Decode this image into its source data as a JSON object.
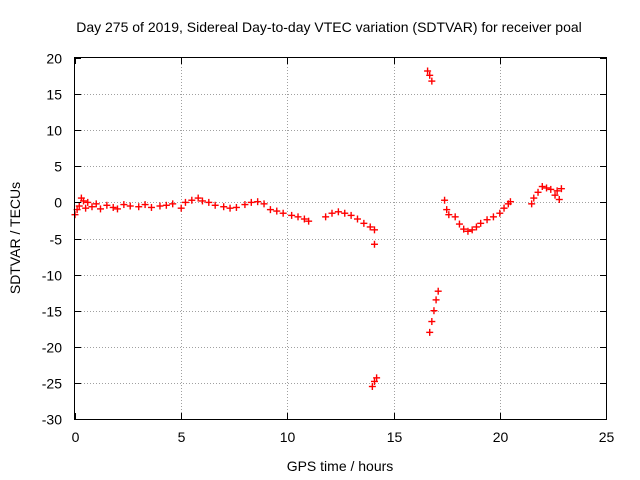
{
  "chart_data": {
    "type": "scatter",
    "title": "Day 275 of 2019, Sidereal Day-to-day VTEC variation (SDTVAR) for receiver poal",
    "xlabel": "GPS time / hours",
    "ylabel": "SDTVAR / TECUs",
    "xlim": [
      0,
      25
    ],
    "ylim": [
      -30,
      20
    ],
    "xticks": [
      0,
      5,
      10,
      15,
      20,
      25
    ],
    "yticks": [
      -30,
      -25,
      -20,
      -15,
      -10,
      -5,
      0,
      5,
      10,
      15,
      20
    ],
    "grid": true,
    "marker": "+",
    "color": "#ff0000",
    "series": [
      {
        "name": "SDTVAR",
        "points": [
          [
            0.0,
            -1.7
          ],
          [
            0.1,
            -1.0
          ],
          [
            0.2,
            -0.5
          ],
          [
            0.3,
            0.6
          ],
          [
            0.4,
            0.2
          ],
          [
            0.5,
            -0.8
          ],
          [
            0.6,
            0.0
          ],
          [
            0.8,
            -0.6
          ],
          [
            1.0,
            -0.2
          ],
          [
            1.2,
            -0.9
          ],
          [
            1.5,
            -0.4
          ],
          [
            1.8,
            -0.7
          ],
          [
            2.0,
            -0.9
          ],
          [
            2.3,
            -0.3
          ],
          [
            2.6,
            -0.5
          ],
          [
            3.0,
            -0.6
          ],
          [
            3.3,
            -0.3
          ],
          [
            3.6,
            -0.7
          ],
          [
            4.0,
            -0.5
          ],
          [
            4.3,
            -0.4
          ],
          [
            4.6,
            -0.2
          ],
          [
            5.0,
            -0.8
          ],
          [
            5.2,
            0.0
          ],
          [
            5.5,
            0.3
          ],
          [
            5.8,
            0.6
          ],
          [
            6.0,
            0.2
          ],
          [
            6.3,
            0.0
          ],
          [
            6.6,
            -0.4
          ],
          [
            7.0,
            -0.6
          ],
          [
            7.3,
            -0.8
          ],
          [
            7.6,
            -0.7
          ],
          [
            8.0,
            -0.3
          ],
          [
            8.3,
            0.0
          ],
          [
            8.6,
            0.1
          ],
          [
            8.9,
            -0.2
          ],
          [
            9.2,
            -1.0
          ],
          [
            9.5,
            -1.2
          ],
          [
            9.8,
            -1.5
          ],
          [
            10.2,
            -1.8
          ],
          [
            10.5,
            -2.0
          ],
          [
            10.8,
            -2.3
          ],
          [
            11.0,
            -2.6
          ],
          [
            11.8,
            -2.0
          ],
          [
            12.1,
            -1.5
          ],
          [
            12.4,
            -1.3
          ],
          [
            12.7,
            -1.5
          ],
          [
            13.0,
            -1.8
          ],
          [
            13.3,
            -2.3
          ],
          [
            13.6,
            -2.9
          ],
          [
            13.9,
            -3.4
          ],
          [
            14.1,
            -3.8
          ],
          [
            14.1,
            -5.8
          ],
          [
            14.0,
            -25.5
          ],
          [
            14.1,
            -24.8
          ],
          [
            14.2,
            -24.3
          ],
          [
            16.6,
            18.2
          ],
          [
            16.7,
            17.6
          ],
          [
            16.8,
            16.8
          ],
          [
            16.7,
            -18.0
          ],
          [
            16.8,
            -16.5
          ],
          [
            16.9,
            -15.0
          ],
          [
            17.0,
            -13.5
          ],
          [
            17.1,
            -12.3
          ],
          [
            17.4,
            0.3
          ],
          [
            17.5,
            -1.0
          ],
          [
            17.6,
            -1.7
          ],
          [
            17.9,
            -2.0
          ],
          [
            18.1,
            -3.0
          ],
          [
            18.3,
            -3.7
          ],
          [
            18.5,
            -4.0
          ],
          [
            18.7,
            -3.8
          ],
          [
            18.9,
            -3.4
          ],
          [
            19.1,
            -2.9
          ],
          [
            19.4,
            -2.4
          ],
          [
            19.7,
            -2.0
          ],
          [
            20.0,
            -1.5
          ],
          [
            20.2,
            -0.8
          ],
          [
            20.4,
            -0.2
          ],
          [
            20.5,
            0.1
          ],
          [
            21.5,
            -0.2
          ],
          [
            21.6,
            0.6
          ],
          [
            21.8,
            1.4
          ],
          [
            22.0,
            2.2
          ],
          [
            22.2,
            2.0
          ],
          [
            22.4,
            1.8
          ],
          [
            22.6,
            1.0
          ],
          [
            22.7,
            1.6
          ],
          [
            22.8,
            0.4
          ],
          [
            22.9,
            1.9
          ]
        ]
      }
    ]
  }
}
